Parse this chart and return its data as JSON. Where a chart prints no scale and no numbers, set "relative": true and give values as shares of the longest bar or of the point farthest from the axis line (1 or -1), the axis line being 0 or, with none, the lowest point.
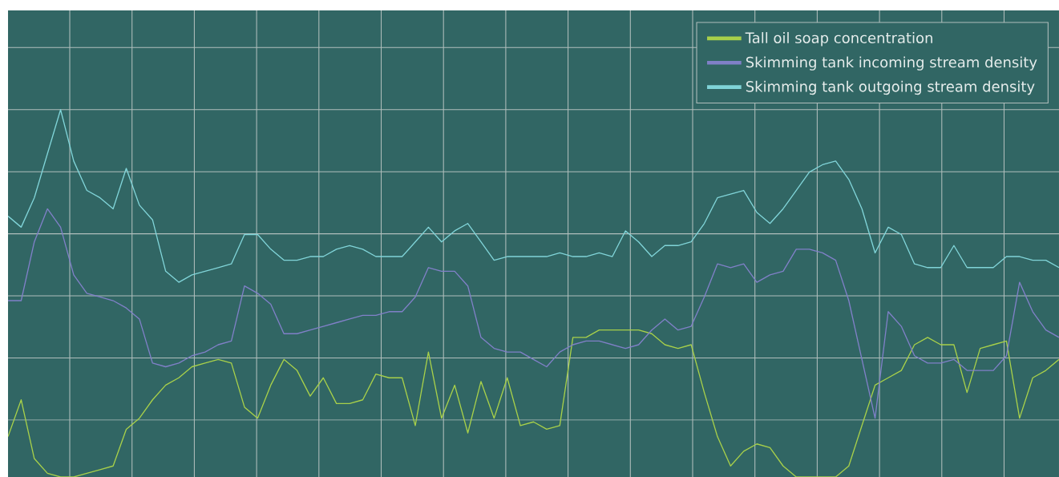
{
  "chart_data": {
    "type": "line",
    "relative": true,
    "grid": true,
    "legend": "top right",
    "categories": [
      null,
      null,
      null,
      null,
      null,
      null,
      null,
      null,
      null,
      null,
      null,
      null,
      null,
      null,
      null,
      null,
      null,
      null,
      null,
      null,
      null,
      null,
      null,
      null,
      null,
      null,
      null,
      null,
      null,
      null,
      null,
      null,
      null,
      null,
      null,
      null,
      null,
      null,
      null,
      null,
      null,
      null,
      null,
      null,
      null,
      null,
      null,
      null,
      null,
      null,
      null,
      null,
      null,
      null,
      null,
      null,
      null,
      null,
      null,
      null,
      null,
      null,
      null,
      null,
      null,
      null,
      null,
      null,
      null,
      null,
      null,
      null,
      null,
      null,
      null,
      null,
      null,
      null,
      null,
      null,
      null
    ],
    "series": [
      {
        "name": "Tall oil soap concentration",
        "color": "#a8d04a",
        "values": [
          0.11,
          0.21,
          0.05,
          0.01,
          0,
          0,
          0.01,
          0.02,
          0.03,
          0.13,
          0.16,
          0.21,
          0.25,
          0.27,
          0.3,
          0.31,
          0.32,
          0.31,
          0.19,
          0.16,
          0.25,
          0.32,
          0.29,
          0.22,
          0.27,
          0.2,
          0.2,
          0.21,
          0.28,
          0.27,
          0.27,
          0.14,
          0.34,
          0.16,
          0.25,
          0.12,
          0.26,
          0.16,
          0.27,
          0.14,
          0.15,
          0.13,
          0.14,
          0.38,
          0.38,
          0.4,
          0.4,
          0.4,
          0.4,
          0.39,
          0.36,
          0.35,
          0.36,
          0.23,
          0.11,
          0.03,
          0.07,
          0.09,
          0.08,
          0.03,
          0,
          0,
          0,
          0,
          0.03,
          0.14,
          0.25,
          0.27,
          0.29,
          0.36,
          0.38,
          0.36,
          0.36,
          0.23,
          0.35,
          0.36,
          0.37,
          0.16,
          0.27,
          0.29,
          0.32
        ]
      },
      {
        "name": "Skimming tank incoming stream density",
        "color": "#8080c8",
        "values": [
          0.48,
          0.48,
          0.64,
          0.73,
          0.68,
          0.55,
          0.5,
          0.49,
          0.48,
          0.46,
          0.43,
          0.31,
          0.3,
          0.31,
          0.33,
          0.34,
          0.36,
          0.37,
          0.52,
          0.5,
          0.47,
          0.39,
          0.39,
          0.4,
          0.41,
          0.42,
          0.43,
          0.44,
          0.44,
          0.45,
          0.45,
          0.49,
          0.57,
          0.56,
          0.56,
          0.52,
          0.38,
          0.35,
          0.34,
          0.34,
          0.32,
          0.3,
          0.34,
          0.36,
          0.37,
          0.37,
          0.36,
          0.35,
          0.36,
          0.4,
          0.43,
          0.4,
          0.41,
          0.49,
          0.58,
          0.57,
          0.58,
          0.53,
          0.55,
          0.56,
          0.62,
          0.62,
          0.61,
          0.59,
          0.48,
          0.32,
          0.16,
          0.45,
          0.41,
          0.33,
          0.31,
          0.31,
          0.32,
          0.29,
          0.29,
          0.29,
          0.33,
          0.53,
          0.45,
          0.4,
          0.38
        ]
      },
      {
        "name": "Skimming tank outgoing stream density",
        "color": "#80d4d8",
        "values": [
          0.71,
          0.68,
          0.76,
          0.88,
          1.0,
          0.86,
          0.78,
          0.76,
          0.73,
          0.84,
          0.74,
          0.7,
          0.56,
          0.53,
          0.55,
          0.56,
          0.57,
          0.58,
          0.66,
          0.66,
          0.62,
          0.59,
          0.59,
          0.6,
          0.6,
          0.62,
          0.63,
          0.62,
          0.6,
          0.6,
          0.6,
          0.64,
          0.68,
          0.64,
          0.67,
          0.69,
          0.64,
          0.59,
          0.6,
          0.6,
          0.6,
          0.6,
          0.61,
          0.6,
          0.6,
          0.61,
          0.6,
          0.67,
          0.64,
          0.6,
          0.63,
          0.63,
          0.64,
          0.69,
          0.76,
          0.77,
          0.78,
          0.72,
          0.69,
          0.73,
          0.78,
          0.83,
          0.85,
          0.86,
          0.81,
          0.73,
          0.61,
          0.68,
          0.66,
          0.58,
          0.57,
          0.57,
          0.63,
          0.57,
          0.57,
          0.57,
          0.6,
          0.6,
          0.59,
          0.59,
          0.57
        ]
      }
    ]
  }
}
